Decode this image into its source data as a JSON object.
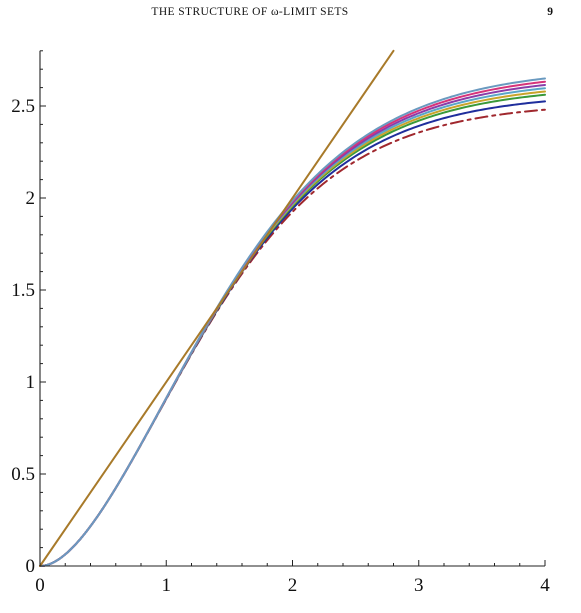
{
  "header": {
    "title": "THE STRUCTURE OF ω-LIMIT SETS",
    "page_number": "9"
  },
  "chart_data": {
    "type": "line",
    "title": "",
    "xlabel": "",
    "ylabel": "",
    "xlim": [
      0,
      4
    ],
    "ylim": [
      0,
      2.8
    ],
    "x_ticks": [
      0,
      1,
      2,
      3,
      4
    ],
    "x_tick_labels": [
      "0",
      "1",
      "2",
      "3",
      "4"
    ],
    "y_ticks": [
      0,
      0.5,
      1,
      1.5,
      2,
      2.5
    ],
    "y_tick_labels": [
      "0",
      "0.5",
      "1",
      "1.5",
      "2",
      "2.5"
    ],
    "grid": false,
    "legend": "none",
    "series": [
      {
        "kind": "curve",
        "limit": 2.52,
        "style": "dashdot",
        "color": "#a0282e"
      },
      {
        "kind": "curve",
        "limit": 2.57,
        "style": "solid",
        "color": "#1f2e9c"
      },
      {
        "kind": "curve",
        "limit": 2.61,
        "style": "solid",
        "color": "#3a9a3a"
      },
      {
        "kind": "curve",
        "limit": 2.63,
        "style": "solid",
        "color": "#c9a42a"
      },
      {
        "kind": "curve",
        "limit": 2.65,
        "style": "solid",
        "color": "#5aa6c8"
      },
      {
        "kind": "curve",
        "limit": 2.67,
        "style": "solid",
        "color": "#8a3da8"
      },
      {
        "kind": "curve",
        "limit": 2.69,
        "style": "solid",
        "color": "#d6337a"
      },
      {
        "kind": "curve",
        "limit": 2.71,
        "style": "solid",
        "color": "#6a9ac0"
      },
      {
        "kind": "line",
        "slope": 1.0,
        "x_end": 2.8,
        "style": "solid",
        "color": "#a87a2a"
      }
    ]
  }
}
